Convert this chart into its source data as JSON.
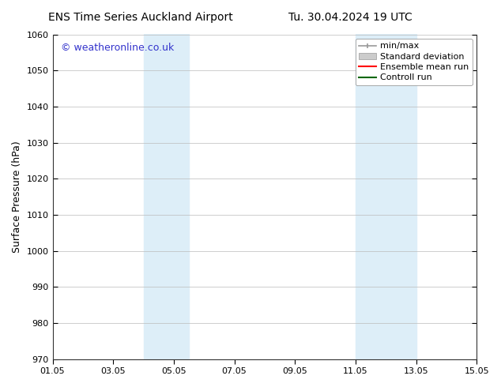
{
  "title_left": "ENS Time Series Auckland Airport",
  "title_right": "Tu. 30.04.2024 19 UTC",
  "ylabel": "Surface Pressure (hPa)",
  "ylim": [
    970,
    1060
  ],
  "yticks": [
    970,
    980,
    990,
    1000,
    1010,
    1020,
    1030,
    1040,
    1050,
    1060
  ],
  "xlim_start": 0,
  "xlim_end": 14,
  "xtick_labels": [
    "01.05",
    "03.05",
    "05.05",
    "07.05",
    "09.05",
    "11.05",
    "13.05",
    "15.05"
  ],
  "xtick_positions": [
    0,
    2,
    4,
    6,
    8,
    10,
    12,
    14
  ],
  "shaded_regions": [
    {
      "x_start": 3.0,
      "x_end": 4.5,
      "color": "#ddeef8"
    },
    {
      "x_start": 10.0,
      "x_end": 12.0,
      "color": "#ddeef8"
    }
  ],
  "watermark_text": "© weatheronline.co.uk",
  "watermark_color": "#3333cc",
  "background_color": "#ffffff",
  "grid_color": "#bbbbbb",
  "legend_items": [
    {
      "label": "min/max",
      "color": "#999999",
      "type": "minmax"
    },
    {
      "label": "Standard deviation",
      "color": "#cccccc",
      "type": "patch"
    },
    {
      "label": "Ensemble mean run",
      "color": "#ff0000",
      "type": "line"
    },
    {
      "label": "Controll run",
      "color": "#006600",
      "type": "line"
    }
  ],
  "title_fontsize": 10,
  "tick_fontsize": 8,
  "legend_fontsize": 8,
  "ylabel_fontsize": 9,
  "watermark_fontsize": 9
}
